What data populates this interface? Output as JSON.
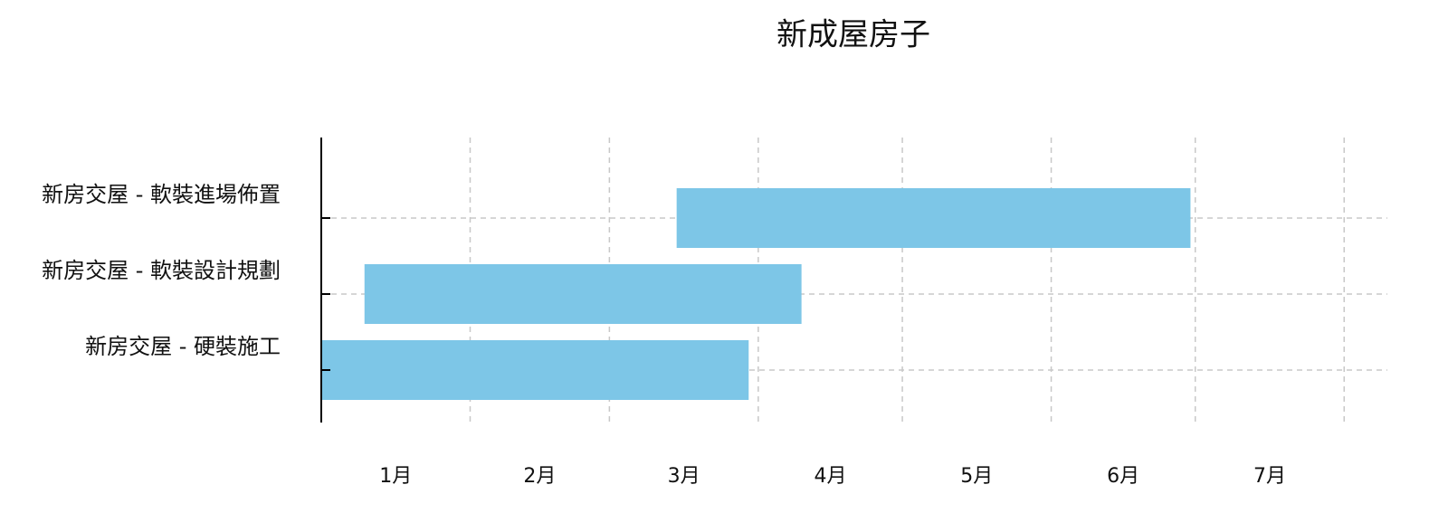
{
  "chart_data": {
    "type": "gantt",
    "title": "新成屋房子",
    "categories": [
      "新房交屋 - 軟裝進場佈置",
      "新房交屋 - 軟裝設計規劃",
      "新房交屋 - 硬裝施工"
    ],
    "start": [
      74,
      9,
      0
    ],
    "end": [
      181,
      100,
      89
    ],
    "color": "#7dc6e7",
    "xlim": [
      0,
      222
    ],
    "xticks": [
      {
        "value": 15.5,
        "label": "1月"
      },
      {
        "value": 45.5,
        "label": "2月"
      },
      {
        "value": 75.5,
        "label": "3月"
      },
      {
        "value": 106,
        "label": "4月"
      },
      {
        "value": 136.5,
        "label": "5月"
      },
      {
        "value": 167,
        "label": "6月"
      },
      {
        "value": 197.5,
        "label": "7月"
      }
    ],
    "xgrid": [
      31,
      60,
      91,
      121,
      152,
      182,
      213
    ],
    "grid": true
  }
}
